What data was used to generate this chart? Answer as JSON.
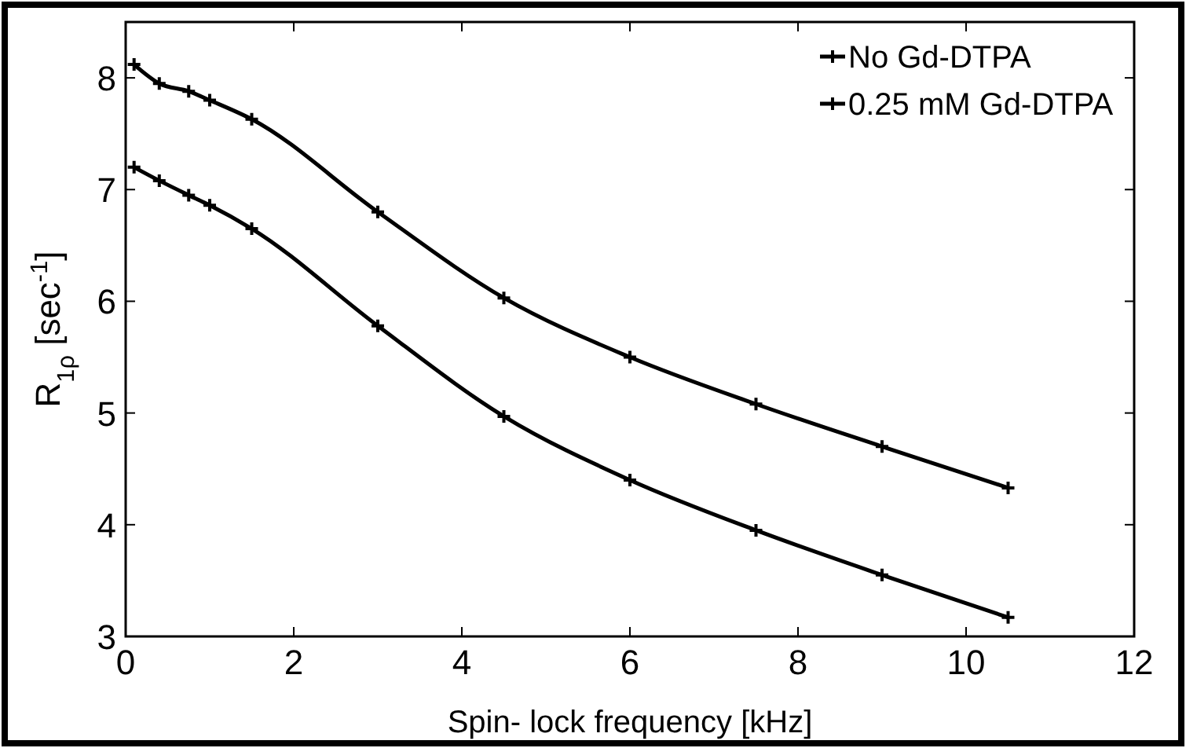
{
  "chart_data": {
    "type": "line",
    "xlabel": "Spin- lock frequency [kHz]",
    "ylabel": "R$_{1ρ}$ [sec$^{-1}$]",
    "x": [
      0.1,
      0.4,
      0.75,
      1.0,
      1.5,
      3,
      4.5,
      6,
      7.5,
      9,
      10.5
    ],
    "series": [
      {
        "name": "No Gd-DTPA",
        "color": "#000000",
        "values": [
          8.12,
          7.95,
          7.88,
          7.8,
          7.63,
          6.8,
          6.03,
          5.5,
          5.08,
          4.7,
          4.33
        ]
      },
      {
        "name": "0.25 mM Gd-DTPA",
        "color": "#000000",
        "values": [
          7.2,
          7.08,
          6.95,
          6.86,
          6.65,
          5.78,
          4.97,
          4.4,
          3.95,
          3.55,
          3.17
        ]
      }
    ],
    "xlim": [
      0,
      12
    ],
    "xticks": [
      0,
      2,
      4,
      6,
      8,
      10,
      12
    ],
    "ylim": [
      3,
      8.5
    ],
    "yticks": [
      3,
      4,
      5,
      6,
      7,
      8
    ],
    "grid": false,
    "legend": "top right",
    "marker": "cross",
    "line_style": "solid"
  }
}
